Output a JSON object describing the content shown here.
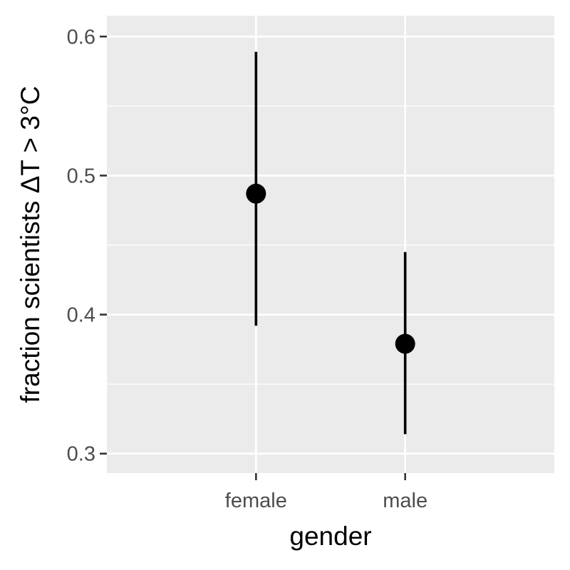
{
  "chart_data": {
    "type": "scatter",
    "title": "",
    "xlabel": "gender",
    "ylabel": "fraction scientists ΔT > 3°C",
    "categories": [
      "female",
      "male"
    ],
    "series": [
      {
        "points": [
          {
            "x": "female",
            "y": 0.487,
            "ymin": 0.392,
            "ymax": 0.589
          },
          {
            "x": "male",
            "y": 0.379,
            "ymin": 0.314,
            "ymax": 0.445
          }
        ]
      }
    ],
    "ylim": [
      0.286,
      0.615
    ],
    "yticks": [
      {
        "value": 0.3,
        "label": "0.3"
      },
      {
        "value": 0.4,
        "label": "0.4"
      },
      {
        "value": 0.5,
        "label": "0.5"
      },
      {
        "value": 0.6,
        "label": "0.6"
      }
    ],
    "grid": true,
    "legend": "none",
    "colors": {
      "panel": "#ebebeb",
      "grid": "#ffffff",
      "point": "#000000",
      "tick_text": "#4d4d4d"
    }
  }
}
